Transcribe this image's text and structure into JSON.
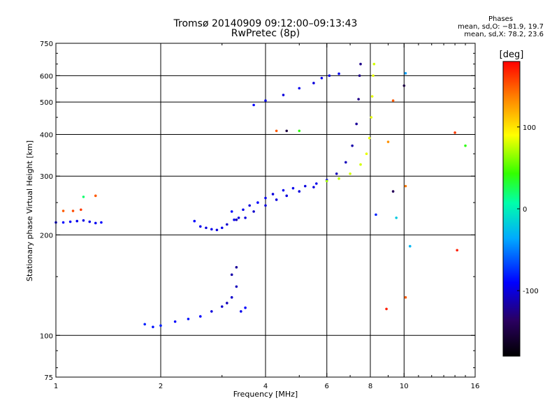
{
  "header": {
    "title_line1": "Tromsø 20140909 09:12:00–09:13:43",
    "title_line2": "RwPretec (8p)"
  },
  "stats": {
    "label": "Phases",
    "line_o": "mean, sd,O: −81.9, 19.7",
    "line_x": "mean, sd,X: 78.2, 23.6"
  },
  "chart_data": {
    "type": "scatter",
    "xlabel": "Frequency [MHz]",
    "ylabel": "Stationary phase Virtual Height [km]",
    "x_scale": "log",
    "y_scale": "log",
    "xlim": [
      1,
      16
    ],
    "ylim": [
      75,
      750
    ],
    "x_ticks": [
      1,
      2,
      4,
      6,
      8,
      10,
      16
    ],
    "y_ticks": [
      75,
      100,
      200,
      300,
      400,
      500,
      600,
      750
    ],
    "x_gridlines": [
      2,
      4,
      6,
      8,
      10
    ],
    "y_gridlines": [
      100,
      200,
      300,
      400,
      500,
      600
    ],
    "grid": true,
    "colorbar": {
      "label": "[deg]",
      "range": [
        -180,
        180
      ],
      "ticks": [
        -100,
        0,
        100
      ],
      "colormap": "rainbow"
    },
    "series": [
      {
        "points": [
          [
            1.0,
            218,
            -95
          ],
          [
            1.05,
            218,
            -90
          ],
          [
            1.1,
            219,
            -92
          ],
          [
            1.15,
            220,
            -95
          ],
          [
            1.2,
            221,
            -98
          ],
          [
            1.25,
            219,
            -96
          ],
          [
            1.3,
            217,
            -94
          ],
          [
            1.35,
            218,
            -90
          ]
        ]
      },
      {
        "points": [
          [
            2.5,
            220,
            -90
          ],
          [
            2.6,
            212,
            -95
          ],
          [
            2.7,
            210,
            -100
          ],
          [
            2.8,
            208,
            -95
          ],
          [
            2.9,
            207,
            -100
          ],
          [
            3.0,
            210,
            -95
          ],
          [
            3.1,
            215,
            -105
          ]
        ]
      },
      {
        "points": [
          [
            3.2,
            235,
            -90
          ],
          [
            3.25,
            222,
            -95
          ],
          [
            3.35,
            225,
            -100
          ],
          [
            3.45,
            238,
            -95
          ],
          [
            3.6,
            245,
            -100
          ],
          [
            3.8,
            250,
            -90
          ],
          [
            4.0,
            258,
            -95
          ],
          [
            4.2,
            265,
            -100
          ],
          [
            4.5,
            272,
            -95
          ],
          [
            4.8,
            276,
            -95
          ],
          [
            5.2,
            280,
            -100
          ],
          [
            5.6,
            285,
            -95
          ],
          [
            6.0,
            292,
            -95
          ]
        ]
      },
      {
        "points": [
          [
            3.3,
            222,
            -110
          ],
          [
            3.5,
            225,
            -100
          ],
          [
            3.7,
            235,
            -105
          ],
          [
            4.0,
            245,
            -100
          ],
          [
            4.3,
            255,
            -100
          ],
          [
            4.6,
            262,
            -100
          ],
          [
            5.0,
            270,
            -100
          ],
          [
            5.5,
            278,
            -100
          ],
          [
            6.0,
            290,
            -105
          ],
          [
            6.4,
            305,
            -110
          ],
          [
            6.8,
            330,
            -110
          ],
          [
            7.1,
            370,
            -115
          ],
          [
            7.3,
            430,
            -120
          ],
          [
            7.4,
            510,
            -125
          ],
          [
            7.45,
            600,
            -125
          ],
          [
            7.5,
            650,
            -125
          ]
        ]
      },
      {
        "points": [
          [
            6.0,
            290,
            70
          ],
          [
            6.5,
            295,
            75
          ],
          [
            7.0,
            305,
            80
          ],
          [
            7.5,
            325,
            80
          ],
          [
            7.8,
            350,
            85
          ],
          [
            7.95,
            390,
            85
          ],
          [
            8.05,
            450,
            85
          ],
          [
            8.1,
            520,
            85
          ],
          [
            8.15,
            600,
            85
          ],
          [
            8.2,
            650,
            80
          ]
        ]
      },
      {
        "points": [
          [
            3.7,
            490,
            -90
          ],
          [
            4.0,
            505,
            -95
          ],
          [
            4.5,
            525,
            -100
          ],
          [
            5.0,
            550,
            -95
          ],
          [
            5.5,
            570,
            -100
          ],
          [
            5.8,
            590,
            -95
          ],
          [
            6.1,
            600,
            -100
          ],
          [
            6.5,
            608,
            -95
          ]
        ]
      },
      {
        "points": [
          [
            1.8,
            108,
            -80
          ],
          [
            1.9,
            106,
            -85
          ],
          [
            2.0,
            107,
            -80
          ],
          [
            2.2,
            110,
            -90
          ],
          [
            2.4,
            112,
            -85
          ],
          [
            2.6,
            114,
            -90
          ],
          [
            2.8,
            118,
            -100
          ],
          [
            3.0,
            122,
            -105
          ],
          [
            3.1,
            125,
            -110
          ],
          [
            3.2,
            130,
            -105
          ],
          [
            3.3,
            140,
            -110
          ],
          [
            3.2,
            152,
            -115
          ],
          [
            3.3,
            160,
            -120
          ],
          [
            3.4,
            118,
            -95
          ],
          [
            3.5,
            121,
            -90
          ]
        ]
      },
      {
        "points": [
          [
            1.05,
            236,
            150
          ],
          [
            1.12,
            236,
            155
          ],
          [
            1.18,
            238,
            160
          ],
          [
            1.2,
            260,
            20
          ],
          [
            1.3,
            262,
            150
          ],
          [
            4.3,
            410,
            150
          ],
          [
            4.6,
            410,
            -150
          ],
          [
            5.0,
            410,
            40
          ],
          [
            9.0,
            380,
            130
          ],
          [
            9.3,
            505,
            150
          ],
          [
            10.0,
            560,
            -150
          ],
          [
            10.1,
            610,
            -40
          ],
          [
            14.0,
            405,
            160
          ],
          [
            14.2,
            180,
            170
          ],
          [
            15.0,
            370,
            40
          ],
          [
            10.4,
            185,
            -30
          ],
          [
            8.3,
            230,
            -80
          ],
          [
            9.5,
            225,
            -20
          ],
          [
            9.3,
            270,
            -140
          ],
          [
            10.1,
            280,
            140
          ],
          [
            8.9,
            120,
            170
          ],
          [
            10.1,
            130,
            150
          ]
        ]
      }
    ]
  }
}
